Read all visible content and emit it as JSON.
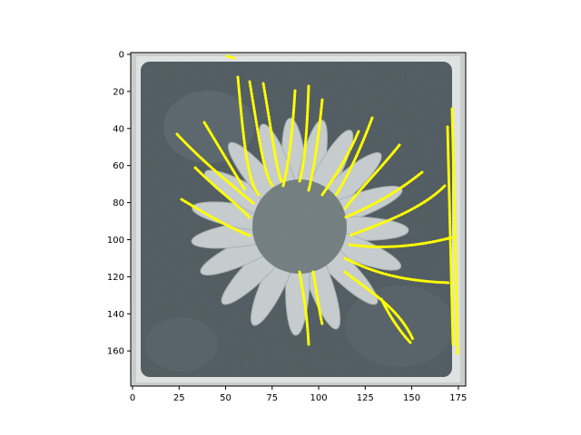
{
  "image": {
    "subject": "",
    "overlay_color": "#ffff00"
  },
  "axes": {
    "x_ticks": [
      "0",
      "25",
      "50",
      "75",
      "100",
      "125",
      "150",
      "175"
    ],
    "y_ticks": [
      "0",
      "20",
      "40",
      "60",
      "80",
      "100",
      "120",
      "140",
      "160"
    ],
    "x_range": [
      0,
      178
    ],
    "y_range": [
      178,
      0
    ]
  }
}
